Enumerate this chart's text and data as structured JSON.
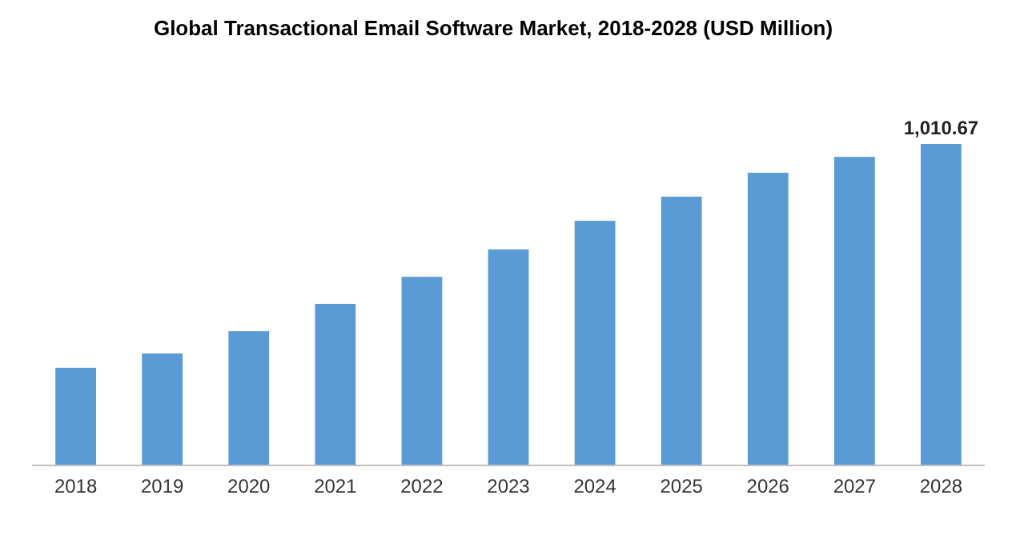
{
  "chart_data": {
    "type": "bar",
    "title": "Global Transactional Email Software Market, 2018-2028 (USD Million)",
    "categories": [
      "2018",
      "2019",
      "2020",
      "2021",
      "2022",
      "2023",
      "2024",
      "2025",
      "2026",
      "2027",
      "2028"
    ],
    "values": [
      307,
      352,
      422,
      508,
      593,
      679,
      769,
      845,
      920,
      970,
      1010.67
    ],
    "value_labels": [
      null,
      null,
      null,
      null,
      null,
      null,
      null,
      null,
      null,
      null,
      "1,010.67"
    ],
    "color": "#5b9bd5"
  }
}
